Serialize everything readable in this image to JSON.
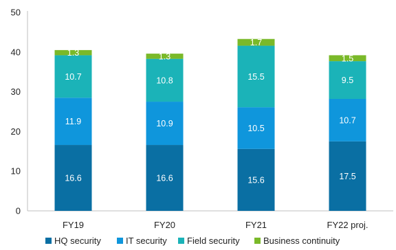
{
  "chart_data": {
    "type": "bar",
    "stacked": true,
    "categories": [
      "FY19",
      "FY20",
      "FY21",
      "FY22 proj."
    ],
    "series": [
      {
        "name": "HQ security",
        "color": "#0a6fa3",
        "values": [
          16.6,
          16.6,
          15.6,
          17.5
        ]
      },
      {
        "name": "IT security",
        "color": "#0f96dc",
        "values": [
          11.9,
          10.9,
          10.5,
          10.7
        ]
      },
      {
        "name": "Field security",
        "color": "#1bb3b8",
        "values": [
          10.7,
          10.8,
          15.5,
          9.5
        ]
      },
      {
        "name": "Business continuity",
        "color": "#7ab929",
        "values": [
          1.3,
          1.3,
          1.7,
          1.5
        ]
      }
    ],
    "ylim": [
      0,
      50
    ],
    "yticks": [
      0,
      10,
      20,
      30,
      40,
      50
    ],
    "grid": false,
    "legend": "bottom",
    "title": "",
    "xlabel": "",
    "ylabel": ""
  }
}
